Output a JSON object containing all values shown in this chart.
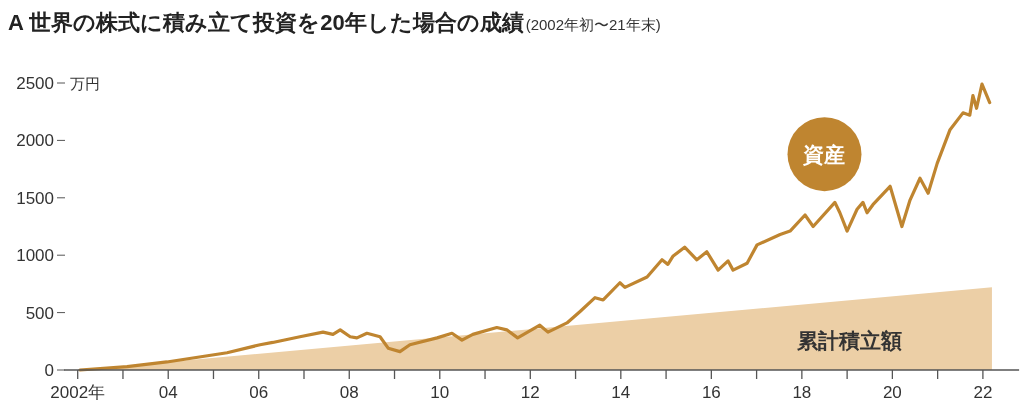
{
  "chart_data": {
    "type": "line",
    "title": "A 世界の株式に積み立て投資を20年した場合の成績",
    "subtitle": "(2002年初〜21年末)",
    "ylabel": "万円",
    "xlim": [
      2001.7,
      2022.8
    ],
    "ylim": [
      0,
      2500
    ],
    "yticks": [
      0,
      500,
      1000,
      1500,
      2000,
      2500
    ],
    "xticks": [
      {
        "value": 2002,
        "label": "2002年"
      },
      {
        "value": 2003,
        "label": null
      },
      {
        "value": 2004,
        "label": "04"
      },
      {
        "value": 2005,
        "label": null
      },
      {
        "value": 2006,
        "label": "06"
      },
      {
        "value": 2007,
        "label": null
      },
      {
        "value": 2008,
        "label": "08"
      },
      {
        "value": 2009,
        "label": null
      },
      {
        "value": 2010,
        "label": "10"
      },
      {
        "value": 2011,
        "label": null
      },
      {
        "value": 2012,
        "label": "12"
      },
      {
        "value": 2013,
        "label": null
      },
      {
        "value": 2014,
        "label": "14"
      },
      {
        "value": 2015,
        "label": null
      },
      {
        "value": 2016,
        "label": "16"
      },
      {
        "value": 2017,
        "label": null
      },
      {
        "value": 2018,
        "label": "18"
      },
      {
        "value": 2019,
        "label": null
      },
      {
        "value": 2020,
        "label": "20"
      },
      {
        "value": 2021,
        "label": null
      },
      {
        "value": 2022,
        "label": "22"
      }
    ],
    "series": [
      {
        "name": "累計積立額",
        "type": "area",
        "color": "#eccfa6",
        "x": [
          2002.05,
          2022.2
        ],
        "values": [
          0,
          720
        ]
      },
      {
        "name": "資産",
        "color": "#bf8530",
        "x": [
          2002.05,
          2003.09,
          2003.97,
          2005.3,
          2006.03,
          2006.31,
          2006.91,
          2007.42,
          2007.64,
          2007.8,
          2008.02,
          2008.17,
          2008.39,
          2008.68,
          2008.86,
          2009.12,
          2009.34,
          2009.94,
          2010.27,
          2010.49,
          2010.73,
          2011.26,
          2011.48,
          2011.72,
          2012.21,
          2012.39,
          2012.81,
          2013.1,
          2013.43,
          2013.61,
          2013.98,
          2014.09,
          2014.58,
          2014.91,
          2015.04,
          2015.15,
          2015.41,
          2015.68,
          2015.9,
          2016.15,
          2016.37,
          2016.48,
          2016.79,
          2017.01,
          2017.52,
          2017.74,
          2018.07,
          2018.25,
          2018.73,
          2018.84,
          2019.0,
          2019.22,
          2019.35,
          2019.44,
          2019.57,
          2019.95,
          2020.21,
          2020.39,
          2020.61,
          2020.79,
          2020.99,
          2021.27,
          2021.56,
          2021.71,
          2021.78,
          2021.86,
          2021.98,
          2022.15
        ],
        "values": [
          0,
          30,
          70,
          150,
          220,
          240,
          290,
          330,
          310,
          350,
          290,
          280,
          320,
          290,
          190,
          160,
          220,
          280,
          320,
          260,
          310,
          370,
          350,
          280,
          390,
          330,
          410,
          510,
          630,
          610,
          760,
          720,
          810,
          960,
          920,
          990,
          1070,
          960,
          1030,
          870,
          950,
          870,
          930,
          1090,
          1180,
          1210,
          1350,
          1250,
          1460,
          1370,
          1210,
          1400,
          1460,
          1370,
          1440,
          1600,
          1250,
          1480,
          1670,
          1540,
          1800,
          2090,
          2240,
          2220,
          2390,
          2280,
          2490,
          2330
        ]
      }
    ]
  }
}
